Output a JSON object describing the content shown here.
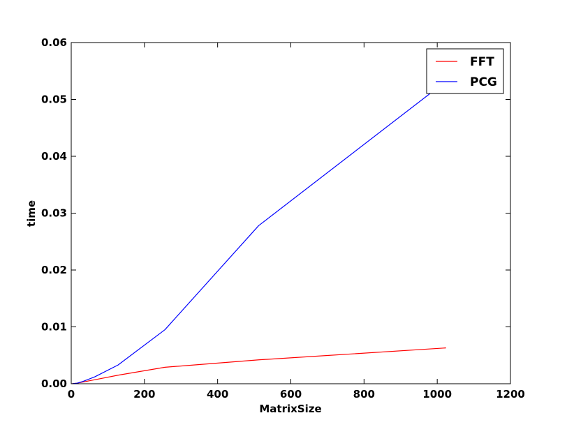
{
  "chart_data": {
    "type": "line",
    "title": "",
    "xlabel": "MatrixSize",
    "ylabel": "time",
    "xlim": [
      0,
      1200
    ],
    "ylim": [
      0,
      0.06
    ],
    "xticks": [
      0,
      200,
      400,
      600,
      800,
      1000,
      1200
    ],
    "yticks": [
      0.0,
      0.01,
      0.02,
      0.03,
      0.04,
      0.05,
      0.06
    ],
    "xtick_labels": [
      "0",
      "200",
      "400",
      "600",
      "800",
      "1000",
      "1200"
    ],
    "ytick_labels": [
      "0.00",
      "0.01",
      "0.02",
      "0.03",
      "0.04",
      "0.05",
      "0.06"
    ],
    "grid": false,
    "legend_position": "top-right",
    "series": [
      {
        "name": "FFT",
        "color": "#ff0000",
        "x": [
          2,
          4,
          8,
          16,
          32,
          64,
          128,
          256,
          512,
          1024
        ],
        "y": [
          1e-05,
          2e-05,
          5e-05,
          0.0001,
          0.0003,
          0.0007,
          0.0015,
          0.0029,
          0.0042,
          0.0063
        ]
      },
      {
        "name": "PCG",
        "color": "#0000ff",
        "x": [
          2,
          4,
          8,
          16,
          32,
          64,
          128,
          256,
          512,
          1024
        ],
        "y": [
          1e-05,
          2e-05,
          5e-05,
          0.0001,
          0.0004,
          0.0012,
          0.0033,
          0.0095,
          0.0278,
          0.0532
        ]
      }
    ]
  }
}
